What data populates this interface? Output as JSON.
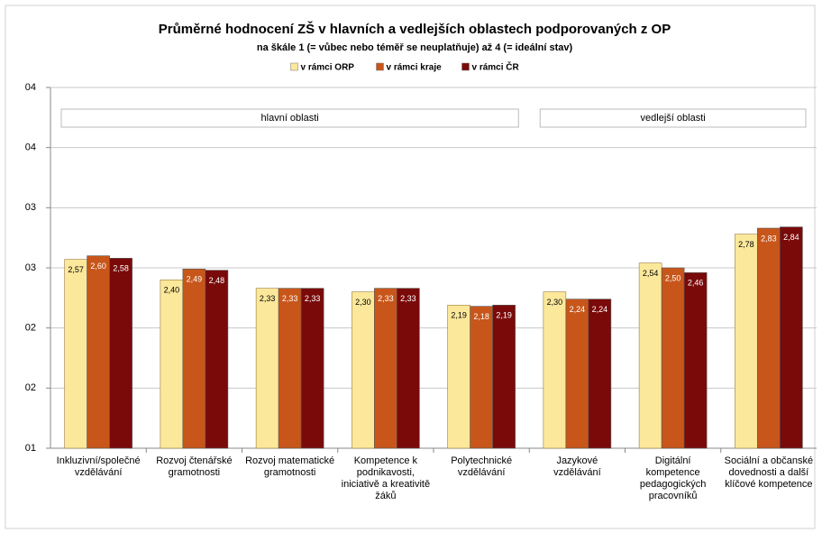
{
  "chart_data": {
    "type": "bar",
    "title": "Průměrné hodnocení ZŠ v hlavních a vedlejších oblastech podporovaných z OP",
    "subtitle": "na škále 1 (= vůbec nebo téměř se neuplatňuje) až 4 (= ideální stav)",
    "annotations": [
      "hlavní oblasti",
      "vedlejší oblasti"
    ],
    "categories": [
      "Inkluzivní/společné vzdělávání",
      "Rozvoj čtenářské gramotnosti",
      "Rozvoj matematické gramotnosti",
      "Kompetence k podnikavosti, iniciativě a kreativitě žáků",
      "Polytechnické vzdělávání",
      "Jazykové vzdělávání",
      "Digitální kompetence pedagogických pracovníků",
      "Sociální a občanské dovednosti a další klíčové kompetence"
    ],
    "series": [
      {
        "name": "v rámci ORP",
        "color": "#fbe89a",
        "values": [
          2.57,
          2.4,
          2.33,
          2.3,
          2.19,
          2.3,
          2.54,
          2.78
        ],
        "value_labels": [
          "2,57",
          "2,40",
          "2,33",
          "2,30",
          "2,19",
          "2,30",
          "2,54",
          "2,78"
        ]
      },
      {
        "name": "v rámci kraje",
        "color": "#c8561a",
        "values": [
          2.6,
          2.49,
          2.33,
          2.33,
          2.18,
          2.24,
          2.5,
          2.83
        ],
        "value_labels": [
          "2,60",
          "2,49",
          "2,33",
          "2,33",
          "2,18",
          "2,24",
          "2,50",
          "2,83"
        ]
      },
      {
        "name": "v rámci ČR",
        "color": "#7a0a0a",
        "values": [
          2.58,
          2.48,
          2.33,
          2.33,
          2.19,
          2.24,
          2.46,
          2.84
        ],
        "value_labels": [
          "2,58",
          "2,48",
          "2,33",
          "2,33",
          "2,19",
          "2,24",
          "2,46",
          "2,84"
        ]
      }
    ],
    "ylim": [
      1,
      4
    ],
    "yticks": [
      {
        "value": 1,
        "label": "01"
      },
      {
        "value": 1.5,
        "label": "02"
      },
      {
        "value": 2,
        "label": "02"
      },
      {
        "value": 2.5,
        "label": "03"
      },
      {
        "value": 3,
        "label": "03"
      },
      {
        "value": 3.5,
        "label": "04"
      },
      {
        "value": 4,
        "label": "04"
      }
    ],
    "grid": true
  }
}
